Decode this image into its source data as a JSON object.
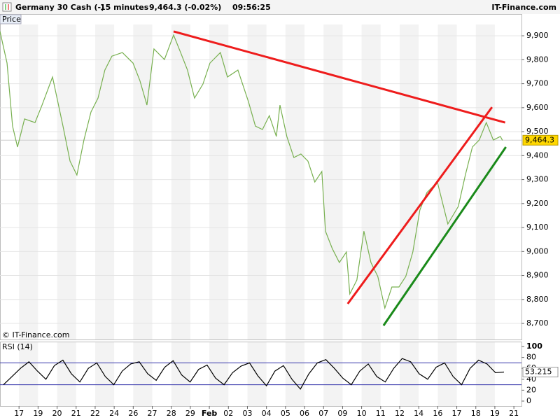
{
  "header": {
    "instrument": "Germany 30 Cash (-)",
    "interval": "15 minutes",
    "quote": "9,464.3 (-0.02%)",
    "time": "09:56:25",
    "site": "IT-Finance.com"
  },
  "chart_data": [
    {
      "type": "line",
      "title": "Price",
      "annotation": "© IT-Finance.com",
      "color": "#78b050",
      "grid": true,
      "xlim": [
        0,
        27.4
      ],
      "ylim": [
        8633,
        9947
      ],
      "xticks": [
        {
          "value": 1,
          "label": "17"
        },
        {
          "value": 2,
          "label": "19"
        },
        {
          "value": 3,
          "label": "20"
        },
        {
          "value": 4,
          "label": "21"
        },
        {
          "value": 5,
          "label": "22"
        },
        {
          "value": 6,
          "label": "24"
        },
        {
          "value": 7,
          "label": "26"
        },
        {
          "value": 8,
          "label": "27"
        },
        {
          "value": 9,
          "label": "28"
        },
        {
          "value": 10,
          "label": "29"
        },
        {
          "value": 11,
          "label": "Feb"
        },
        {
          "value": 12,
          "label": "02"
        },
        {
          "value": 13,
          "label": "03"
        },
        {
          "value": 14,
          "label": "04"
        },
        {
          "value": 15,
          "label": "05"
        },
        {
          "value": 16,
          "label": "06"
        },
        {
          "value": 17,
          "label": "07"
        },
        {
          "value": 18,
          "label": "09"
        },
        {
          "value": 19,
          "label": "10"
        },
        {
          "value": 20,
          "label": "11"
        },
        {
          "value": 21,
          "label": "12"
        },
        {
          "value": 22,
          "label": "14"
        },
        {
          "value": 23,
          "label": "16"
        },
        {
          "value": 24,
          "label": "17"
        },
        {
          "value": 25,
          "label": "18"
        },
        {
          "value": 26,
          "label": "19"
        },
        {
          "value": 27,
          "label": "21"
        }
      ],
      "yticks": [
        {
          "value": 8700,
          "label": "8,700"
        },
        {
          "value": 8800,
          "label": "8,800"
        },
        {
          "value": 8900,
          "label": "8,900"
        },
        {
          "value": 9000,
          "label": "9,000"
        },
        {
          "value": 9100,
          "label": "9,100"
        },
        {
          "value": 9200,
          "label": "9,200"
        },
        {
          "value": 9300,
          "label": "9,300"
        },
        {
          "value": 9400,
          "label": "9,400"
        },
        {
          "value": 9500,
          "label": "9,500"
        },
        {
          "value": 9600,
          "label": "9,600"
        },
        {
          "value": 9700,
          "label": "9,700"
        },
        {
          "value": 9800,
          "label": "9,800"
        },
        {
          "value": 9900,
          "label": "9,900"
        }
      ],
      "x": [
        0,
        0.37,
        0.66,
        0.92,
        1.29,
        1.84,
        2.21,
        2.76,
        3.31,
        3.68,
        4.04,
        4.41,
        4.78,
        5.15,
        5.51,
        5.88,
        6.43,
        6.99,
        7.35,
        7.72,
        8.09,
        8.64,
        9.12,
        9.49,
        9.85,
        10.22,
        10.66,
        11.03,
        11.58,
        11.95,
        12.5,
        13.05,
        13.42,
        13.79,
        14.15,
        14.52,
        14.71,
        15.07,
        15.44,
        15.81,
        16.18,
        16.54,
        16.91,
        17.1,
        17.46,
        17.83,
        18.2,
        18.38,
        18.75,
        19.12,
        19.49,
        19.85,
        20.22,
        20.59,
        20.96,
        21.32,
        21.69,
        22.06,
        22.43,
        22.98,
        23.53,
        24.08,
        24.45,
        24.82,
        25.18,
        25.55,
        25.92,
        26.29,
        26.4
      ],
      "values": [
        9918,
        9786,
        9523,
        9436,
        9553,
        9538,
        9611,
        9728,
        9523,
        9377,
        9319,
        9465,
        9582,
        9640,
        9757,
        9815,
        9830,
        9786,
        9713,
        9611,
        9845,
        9801,
        9903,
        9830,
        9757,
        9640,
        9698,
        9786,
        9830,
        9728,
        9757,
        9626,
        9523,
        9509,
        9567,
        9480,
        9611,
        9480,
        9392,
        9407,
        9377,
        9290,
        9334,
        9085,
        9012,
        8954,
        8998,
        8823,
        8881,
        9085,
        8954,
        8896,
        8764,
        8852,
        8852,
        8896,
        8998,
        9173,
        9246,
        9290,
        9115,
        9188,
        9319,
        9436,
        9465,
        9538,
        9465,
        9480,
        9464
      ],
      "trendlines": [
        {
          "color": "#ee1c1c",
          "points": [
            [
              9.12,
              9918
            ],
            [
              26.54,
              9538
            ]
          ]
        },
        {
          "color": "#ee1c1c",
          "points": [
            [
              18.27,
              8782
            ],
            [
              25.85,
              9602
            ]
          ]
        },
        {
          "color": "#1a8a1a",
          "points": [
            [
              20.15,
              8691
            ],
            [
              26.58,
              9436
            ]
          ]
        }
      ],
      "last_value": 9464.3,
      "last_label": "9,464.3"
    },
    {
      "type": "line",
      "title": "RSI (14)",
      "color": "#000000",
      "ylim": [
        -9,
        109
      ],
      "yticks": [
        0,
        20,
        40,
        60,
        80,
        100
      ],
      "bands": [
        30,
        70
      ],
      "band_color": "#3333aa",
      "values": [
        30,
        45,
        60,
        72,
        55,
        40,
        65,
        75,
        50,
        35,
        60,
        70,
        45,
        30,
        55,
        68,
        72,
        50,
        38,
        62,
        74,
        48,
        35,
        58,
        66,
        42,
        30,
        52,
        64,
        70,
        46,
        28,
        55,
        65,
        40,
        22,
        50,
        70,
        76,
        60,
        42,
        30,
        55,
        68,
        45,
        35,
        60,
        78,
        72,
        50,
        40,
        62,
        70,
        45,
        30,
        60,
        75,
        68,
        52,
        53.2
      ],
      "last_value": 53.215,
      "last_label": "53.215"
    }
  ]
}
